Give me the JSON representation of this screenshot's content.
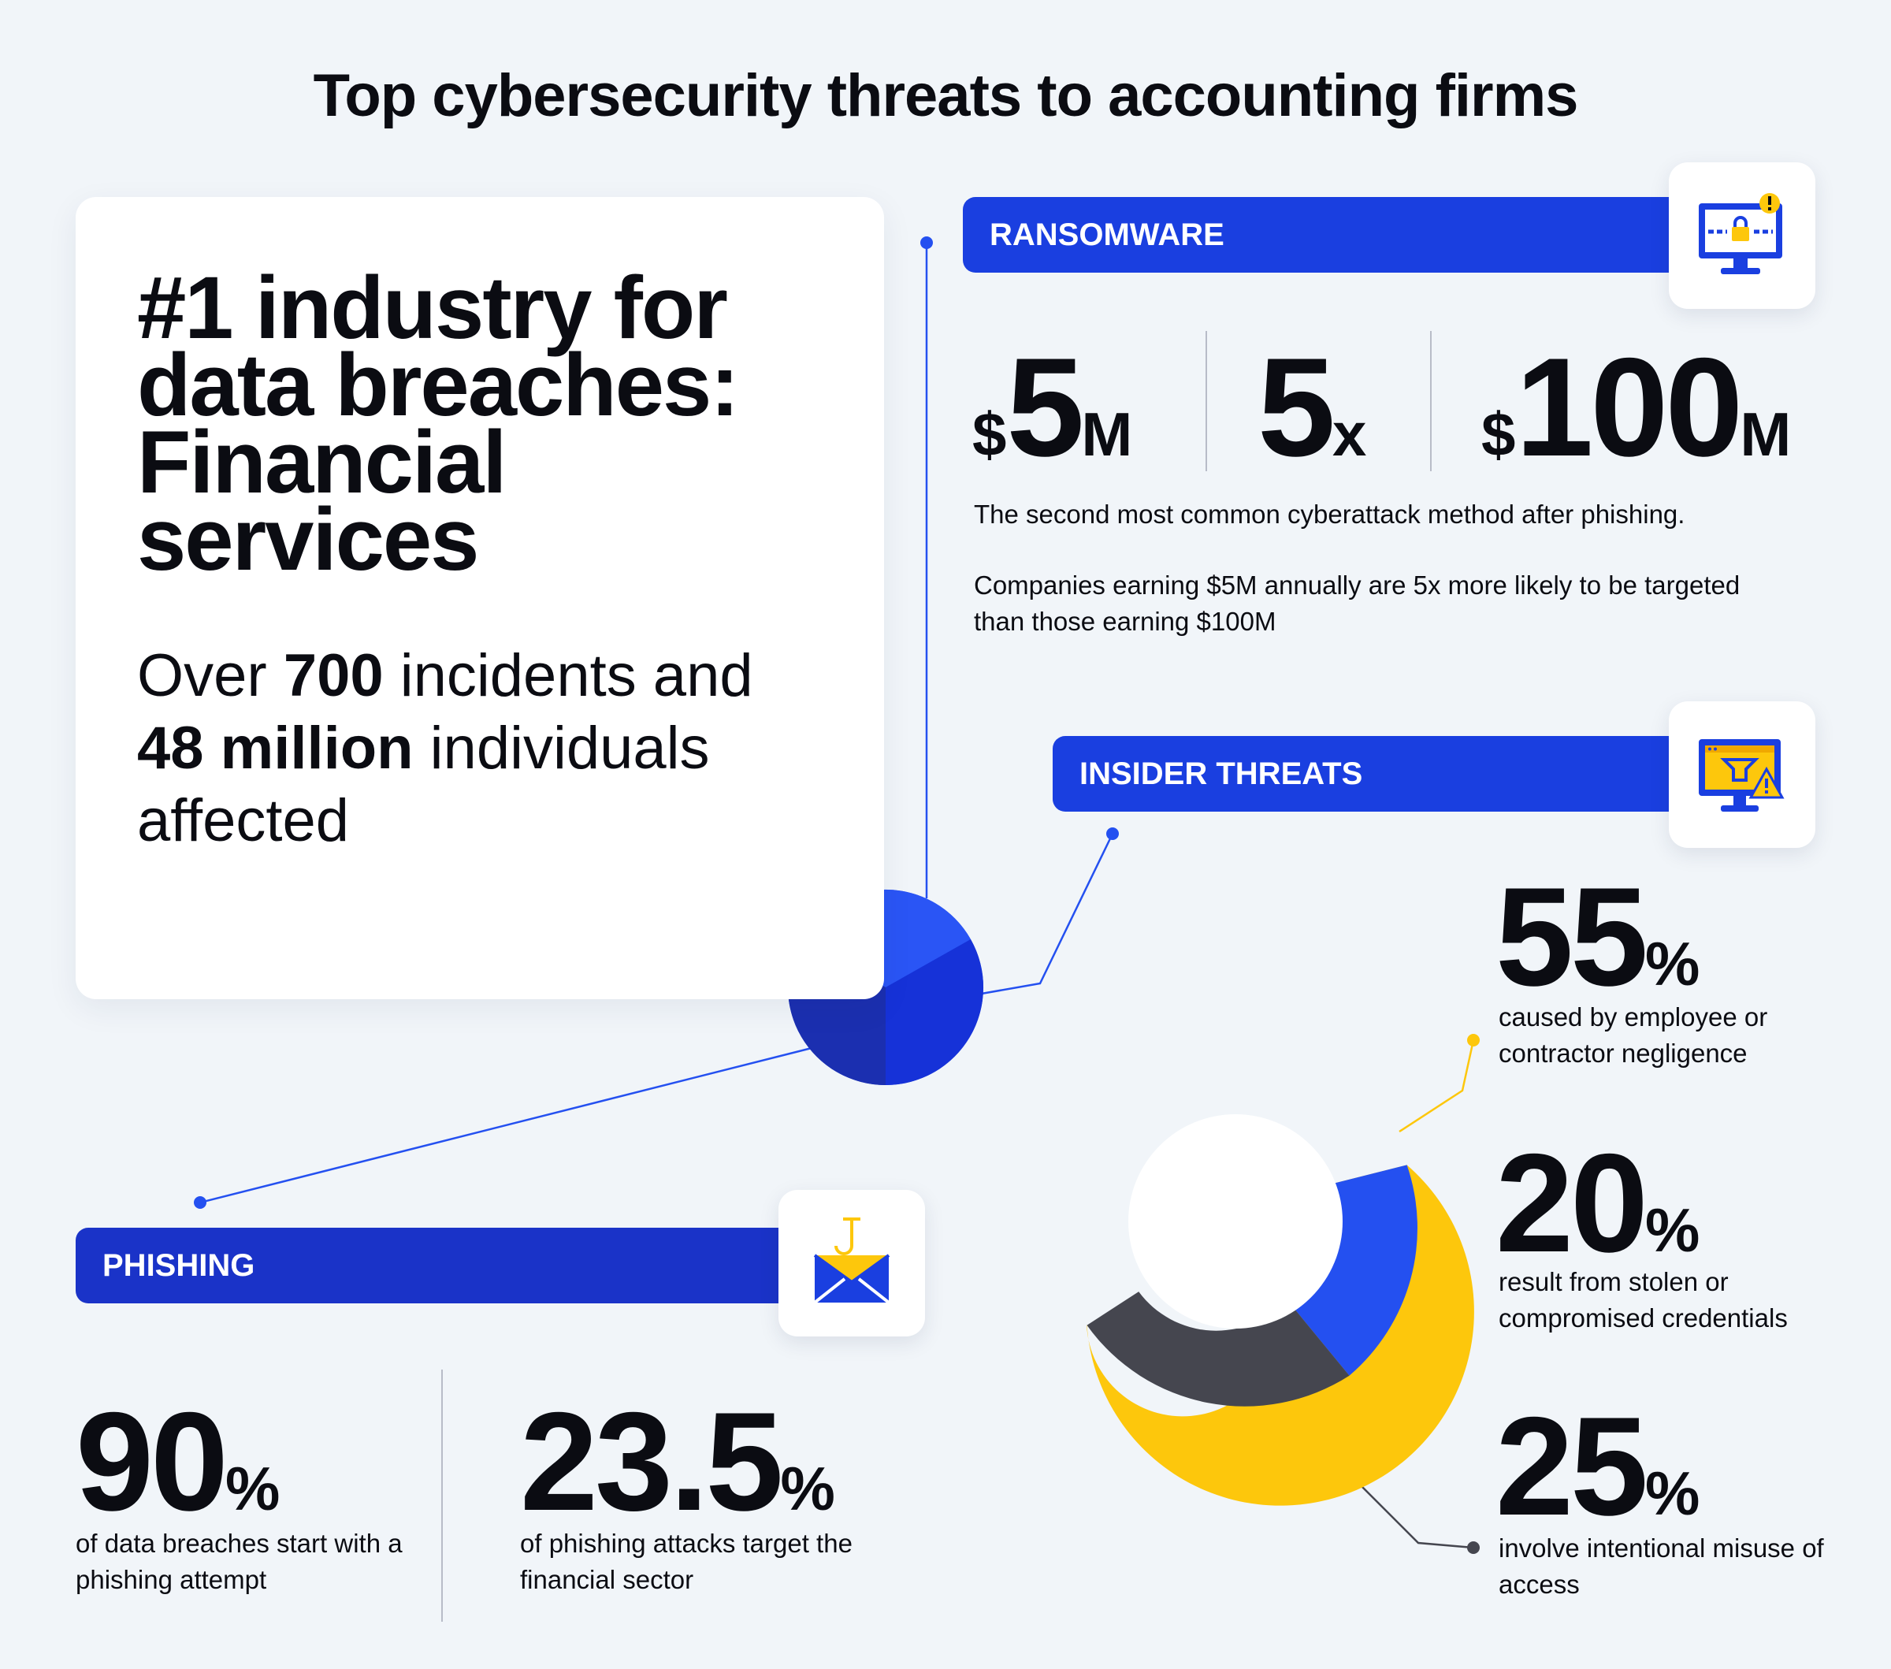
{
  "title": "Top cybersecurity threats to accounting firms",
  "hero": {
    "heading_lines": [
      "#1 industry for",
      "data breaches:",
      "Financial",
      "services"
    ],
    "body": {
      "t1": "Over ",
      "b1": "700",
      "t2": " incidents and",
      "b2": "48 million",
      "t3": " individuals affected"
    }
  },
  "colors": {
    "background": "#f1f5f9",
    "brand_blue": "#1a3fe0",
    "dark_blue": "#1a33c8",
    "yellow": "#fdc70c",
    "charcoal": "#45464f"
  },
  "ransomware": {
    "label": "RANSOMWARE",
    "icon": "locked-monitor-icon",
    "stats": [
      {
        "prefix": "$",
        "number": "5",
        "suffix": "M"
      },
      {
        "prefix": "",
        "number": "5",
        "suffix": "x"
      },
      {
        "prefix": "$",
        "number": "100",
        "suffix": "M"
      }
    ],
    "desc_1": "The second most common cyberattack method after phishing.",
    "desc_2": "Companies earning $5M annually are 5x more likely to be targeted than those earning $100M"
  },
  "insider": {
    "label": "INSIDER THREATS",
    "icon": "warning-monitor-icon",
    "stats": [
      {
        "number": "55",
        "suffix": "%",
        "desc": "caused by employee or contractor negligence"
      },
      {
        "number": "20",
        "suffix": "%",
        "desc": "result from stolen or compromised credentials"
      },
      {
        "number": "25",
        "suffix": "%",
        "desc": "involve intentional misuse of access"
      }
    ],
    "donut": [
      {
        "share": 0.55,
        "color": "#fdc70c"
      },
      {
        "share": 0.2,
        "color": "#2450f0"
      },
      {
        "share": 0.25,
        "color": "#45464f"
      }
    ]
  },
  "phishing": {
    "label": "PHISHING",
    "icon": "hooked-envelope-icon",
    "stats": [
      {
        "number": "90",
        "suffix": "%",
        "desc": "of data breaches start with a phishing attempt"
      },
      {
        "number": "23.5",
        "suffix": "%",
        "desc": "of phishing attacks target the financial sector"
      }
    ]
  }
}
